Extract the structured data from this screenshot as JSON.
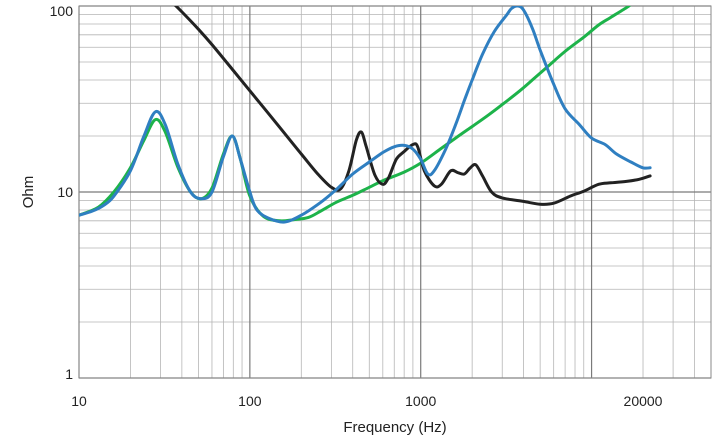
{
  "chart_data": {
    "type": "line",
    "title": "",
    "xlabel": "Frequency (Hz)",
    "ylabel": "Ohm",
    "x_scale": "log",
    "y_scale": "log",
    "xlim": [
      10,
      50000
    ],
    "ylim": [
      1,
      100
    ],
    "grid": true,
    "x_tick_labels": [
      {
        "value": 10,
        "label": "10"
      },
      {
        "value": 100,
        "label": "100"
      },
      {
        "value": 1000,
        "label": "1000"
      },
      {
        "value": 20000,
        "label": "20000"
      }
    ],
    "y_tick_labels": [
      {
        "value": 1,
        "label": "1"
      },
      {
        "value": 10,
        "label": "10"
      },
      {
        "value": 100,
        "label": "100"
      }
    ],
    "series": [
      {
        "color": "#1db34a",
        "points": [
          [
            10,
            7.5
          ],
          [
            13,
            8.3
          ],
          [
            16,
            10
          ],
          [
            20,
            13.5
          ],
          [
            24,
            19
          ],
          [
            28,
            24.5
          ],
          [
            32,
            21
          ],
          [
            38,
            13.5
          ],
          [
            45,
            10
          ],
          [
            52,
            9.2
          ],
          [
            60,
            10.5
          ],
          [
            70,
            16
          ],
          [
            79,
            20
          ],
          [
            88,
            15
          ],
          [
            100,
            9.5
          ],
          [
            120,
            7.4
          ],
          [
            150,
            7.0
          ],
          [
            180,
            7.1
          ],
          [
            220,
            7.3
          ],
          [
            260,
            7.9
          ],
          [
            320,
            8.8
          ],
          [
            400,
            9.6
          ],
          [
            500,
            10.6
          ],
          [
            600,
            11.5
          ],
          [
            800,
            12.8
          ],
          [
            1000,
            14.3
          ],
          [
            1300,
            17
          ],
          [
            1600,
            19.5
          ],
          [
            2000,
            22.5
          ],
          [
            2500,
            26
          ],
          [
            3000,
            29.5
          ],
          [
            3800,
            35
          ],
          [
            4500,
            40
          ],
          [
            5500,
            47
          ],
          [
            7000,
            57
          ],
          [
            9000,
            68
          ],
          [
            11000,
            79
          ],
          [
            13000,
            87
          ],
          [
            16000,
            98
          ],
          [
            17000,
            102
          ]
        ]
      },
      {
        "color": "#222222",
        "points": [
          [
            35,
            105
          ],
          [
            40,
            93
          ],
          [
            50,
            75
          ],
          [
            60,
            62
          ],
          [
            80,
            45
          ],
          [
            100,
            35
          ],
          [
            140,
            24
          ],
          [
            200,
            16
          ],
          [
            250,
            12.5
          ],
          [
            300,
            10.6
          ],
          [
            340,
            10.4
          ],
          [
            380,
            13
          ],
          [
            420,
            19
          ],
          [
            450,
            21
          ],
          [
            480,
            17.5
          ],
          [
            540,
            12.3
          ],
          [
            600,
            11
          ],
          [
            650,
            12
          ],
          [
            720,
            15
          ],
          [
            800,
            16.5
          ],
          [
            900,
            18
          ],
          [
            960,
            17.5
          ],
          [
            1050,
            13
          ],
          [
            1200,
            10.8
          ],
          [
            1320,
            11
          ],
          [
            1500,
            13
          ],
          [
            1650,
            12.7
          ],
          [
            1800,
            12.5
          ],
          [
            1950,
            13.5
          ],
          [
            2100,
            14
          ],
          [
            2300,
            12.2
          ],
          [
            2600,
            10
          ],
          [
            3000,
            9.3
          ],
          [
            4000,
            8.9
          ],
          [
            5000,
            8.6
          ],
          [
            6000,
            8.7
          ],
          [
            7500,
            9.5
          ],
          [
            9000,
            10.1
          ],
          [
            11000,
            11
          ],
          [
            13000,
            11.2
          ],
          [
            16000,
            11.4
          ],
          [
            19000,
            11.7
          ],
          [
            22000,
            12.2
          ]
        ]
      },
      {
        "color": "#2f7fc1",
        "points": [
          [
            10,
            7.5
          ],
          [
            12,
            7.9
          ],
          [
            14,
            8.5
          ],
          [
            16,
            9.5
          ],
          [
            20,
            13
          ],
          [
            24,
            20
          ],
          [
            28,
            27
          ],
          [
            32,
            23
          ],
          [
            38,
            14
          ],
          [
            45,
            10
          ],
          [
            52,
            9.2
          ],
          [
            60,
            10
          ],
          [
            70,
            15.5
          ],
          [
            79,
            20
          ],
          [
            88,
            15
          ],
          [
            100,
            10
          ],
          [
            110,
            8
          ],
          [
            130,
            7.2
          ],
          [
            160,
            6.9
          ],
          [
            200,
            7.5
          ],
          [
            260,
            8.8
          ],
          [
            320,
            10.3
          ],
          [
            400,
            12.5
          ],
          [
            500,
            14.5
          ],
          [
            600,
            16.3
          ],
          [
            700,
            17.5
          ],
          [
            800,
            17.8
          ],
          [
            900,
            17
          ],
          [
            1000,
            15
          ],
          [
            1100,
            12.5
          ],
          [
            1200,
            13
          ],
          [
            1400,
            17
          ],
          [
            1600,
            23
          ],
          [
            1800,
            31
          ],
          [
            2000,
            40
          ],
          [
            2300,
            55
          ],
          [
            2700,
            73
          ],
          [
            3200,
            90
          ],
          [
            3400,
            97
          ],
          [
            3700,
            100
          ],
          [
            4000,
            95
          ],
          [
            4500,
            76
          ],
          [
            5000,
            58
          ],
          [
            6000,
            38
          ],
          [
            7000,
            28
          ],
          [
            8500,
            23
          ],
          [
            10000,
            19.5
          ],
          [
            12000,
            18
          ],
          [
            14000,
            16
          ],
          [
            17000,
            14.5
          ],
          [
            20000,
            13.5
          ],
          [
            22000,
            13.5
          ]
        ]
      }
    ]
  }
}
